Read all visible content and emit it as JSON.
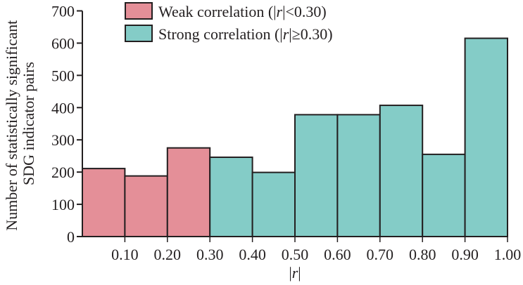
{
  "chart_data": {
    "type": "bar",
    "subtype": "histogram",
    "title": "",
    "xlabel_parts": [
      "|",
      "r",
      "|"
    ],
    "xlabel": "|r|",
    "ylabel_lines": [
      "Number of statistically significant",
      "SDG indicator pairs"
    ],
    "xlim": [
      0,
      1.0
    ],
    "ylim": [
      0,
      700
    ],
    "yticks": [
      0,
      100,
      200,
      300,
      400,
      500,
      600,
      700
    ],
    "xticks": [
      0.1,
      0.2,
      0.3,
      0.4,
      0.5,
      0.6,
      0.7,
      0.8,
      0.9,
      1.0
    ],
    "xtick_labels": [
      "0.10",
      "0.20",
      "0.30",
      "0.40",
      "0.50",
      "0.60",
      "0.70",
      "0.80",
      "0.90",
      "1.00"
    ],
    "bins": [
      {
        "from": 0.0,
        "to": 0.1,
        "value": 211,
        "group": "weak"
      },
      {
        "from": 0.1,
        "to": 0.2,
        "value": 188,
        "group": "weak"
      },
      {
        "from": 0.2,
        "to": 0.3,
        "value": 275,
        "group": "weak"
      },
      {
        "from": 0.3,
        "to": 0.4,
        "value": 246,
        "group": "strong"
      },
      {
        "from": 0.4,
        "to": 0.5,
        "value": 199,
        "group": "strong"
      },
      {
        "from": 0.5,
        "to": 0.6,
        "value": 378,
        "group": "strong"
      },
      {
        "from": 0.6,
        "to": 0.7,
        "value": 378,
        "group": "strong"
      },
      {
        "from": 0.7,
        "to": 0.8,
        "value": 407,
        "group": "strong"
      },
      {
        "from": 0.8,
        "to": 0.9,
        "value": 255,
        "group": "strong"
      },
      {
        "from": 0.9,
        "to": 1.0,
        "value": 615,
        "group": "strong"
      }
    ],
    "series": [
      {
        "name": "Weak correlation (|r|<0.30)",
        "key": "weak",
        "color": "#e48f98",
        "label_parts": [
          "Weak correlation (|",
          "r",
          "|<0.30)"
        ]
      },
      {
        "name": "Strong correlation (|r|≥0.30)",
        "key": "strong",
        "color": "#84ccc7",
        "label_parts": [
          "Strong correlation (|",
          "r",
          "|≥0.30)"
        ]
      }
    ],
    "legend_position": "top-left",
    "grid": false,
    "edge_color": "#231f20"
  }
}
